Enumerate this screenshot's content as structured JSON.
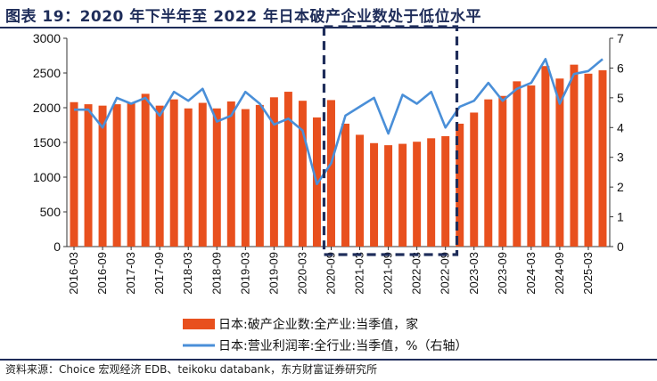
{
  "title": "图表 19：2020 年下半年至 2022 年日本破产企业数处于低位水平",
  "source": "资料来源：Choice 宏观经济 EDB、teikoku databank，东方财富证券研究所",
  "chart_data": {
    "type": "bar",
    "x": [
      "2016-03",
      "2016-06",
      "2016-09",
      "2016-12",
      "2017-03",
      "2017-06",
      "2017-09",
      "2017-12",
      "2018-03",
      "2018-06",
      "2018-09",
      "2018-12",
      "2019-03",
      "2019-06",
      "2019-09",
      "2019-12",
      "2020-03",
      "2020-06",
      "2020-09",
      "2020-12",
      "2021-03",
      "2021-06",
      "2021-09",
      "2021-12",
      "2022-03",
      "2022-06",
      "2022-09",
      "2022-12",
      "2023-03",
      "2023-06",
      "2023-09",
      "2023-12",
      "2024-03",
      "2024-06",
      "2024-09",
      "2024-12",
      "2025-03",
      "2025-06"
    ],
    "x_tick_labels": [
      "2016-03",
      "2016-09",
      "2017-03",
      "2017-09",
      "2018-03",
      "2018-09",
      "2019-03",
      "2019-09",
      "2020-03",
      "2020-09",
      "2021-03",
      "2021-09",
      "2022-03",
      "2022-09",
      "2023-03",
      "2023-09",
      "2024-03",
      "2024-09",
      "2025-03"
    ],
    "series": [
      {
        "name": "日本:破产企业数:全产业:当季值，家",
        "type": "bar",
        "axis": "left",
        "color": "#e8501e",
        "values": [
          2080,
          2050,
          2030,
          2050,
          2070,
          2200,
          2030,
          2120,
          1990,
          2070,
          1990,
          2090,
          1980,
          2040,
          2150,
          2230,
          2100,
          1860,
          2110,
          1770,
          1610,
          1490,
          1460,
          1480,
          1510,
          1560,
          1590,
          1770,
          1930,
          2120,
          2170,
          2380,
          2320,
          2600,
          2420,
          2620,
          2490,
          2540
        ]
      },
      {
        "name": "日本:营业利润率:全行业:当季值，%（右轴）",
        "type": "line",
        "axis": "right",
        "color": "#4a8fd8",
        "values": [
          4.6,
          4.6,
          4.0,
          5.0,
          4.8,
          5.0,
          4.4,
          5.2,
          4.9,
          5.3,
          4.2,
          4.4,
          5.2,
          4.8,
          4.1,
          4.3,
          3.9,
          2.1,
          2.8,
          4.4,
          4.7,
          5.0,
          3.8,
          5.1,
          4.8,
          5.2,
          4.0,
          4.7,
          4.9,
          5.5,
          4.9,
          5.3,
          5.5,
          6.3,
          4.8,
          5.8,
          5.9,
          6.3
        ]
      }
    ],
    "y_left": {
      "min": 0,
      "max": 3000,
      "ticks": [
        0,
        500,
        1000,
        1500,
        2000,
        2500,
        3000
      ]
    },
    "y_right": {
      "min": 0,
      "max": 7,
      "ticks": [
        0,
        1,
        2,
        3,
        4,
        5,
        6,
        7
      ]
    },
    "annotation": {
      "type": "dashed-box",
      "from": "2020-09",
      "to": "2022-09",
      "color": "#1f2d5a"
    },
    "legend_position": "bottom-center"
  }
}
